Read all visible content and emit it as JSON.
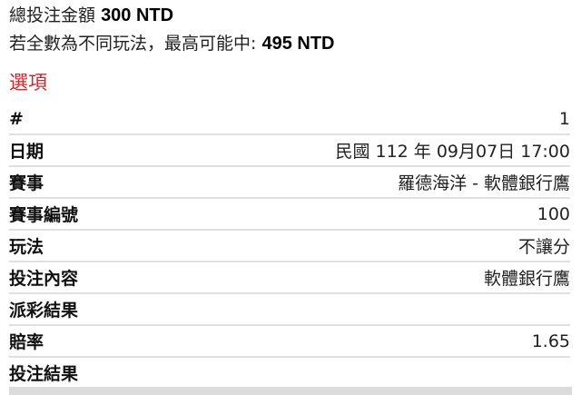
{
  "summary": {
    "total_label": "總投注金額",
    "total_value": "300 NTD",
    "max_label": "若全數為不同玩法，最高可能中:",
    "max_value": "495 NTD"
  },
  "section_title": "選項",
  "colors": {
    "accent": "#d0262b"
  },
  "rows": [
    {
      "label": "#",
      "value": "1"
    },
    {
      "label": "日期",
      "value": "民國 112 年 09月07日 17:00"
    },
    {
      "label": "賽事",
      "value": "羅德海洋 - 軟體銀行鷹"
    },
    {
      "label": "賽事編號",
      "value": "100"
    },
    {
      "label": "玩法",
      "value": "不讓分"
    },
    {
      "label": "投注內容",
      "value": "軟體銀行鷹"
    },
    {
      "label": "派彩結果",
      "value": ""
    },
    {
      "label": "賠率",
      "value": "1.65"
    },
    {
      "label": "投注結果",
      "value": ""
    }
  ]
}
